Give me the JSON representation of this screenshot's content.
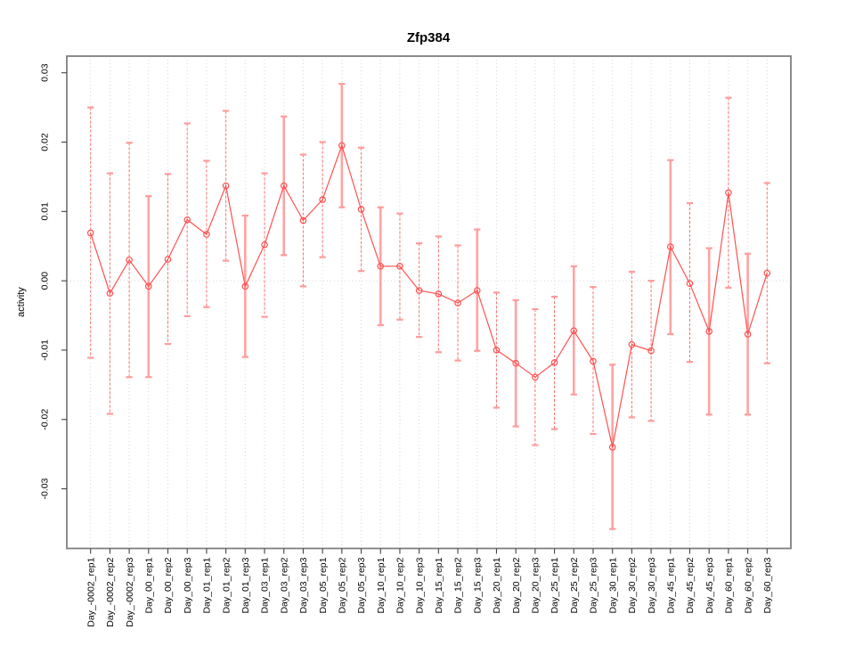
{
  "chart_data": {
    "type": "line",
    "title": "Zfp384",
    "xlabel": "",
    "ylabel": "activity",
    "legend": "none",
    "grid": "dotted vertical gridline at every category; dotted horizontal line at 0.00",
    "marker": "open-circle",
    "error_bars": true,
    "ylim": [
      -0.0386,
      0.0324
    ],
    "yticks": [
      -0.03,
      -0.02,
      -0.01,
      0.0,
      0.01,
      0.02,
      0.03
    ],
    "ytick_labels": [
      "-0.03",
      "-0.02",
      "-0.01",
      "0.00",
      "0.01",
      "0.02",
      "0.03"
    ],
    "categories": [
      "Day_-0002_rep1",
      "Day_-0002_rep2",
      "Day_-0002_rep3",
      "Day_00_rep1",
      "Day_00_rep2",
      "Day_00_rep3",
      "Day_01_rep1",
      "Day_01_rep2",
      "Day_01_rep3",
      "Day_03_rep1",
      "Day_03_rep2",
      "Day_03_rep3",
      "Day_05_rep1",
      "Day_05_rep2",
      "Day_05_rep3",
      "Day_10_rep1",
      "Day_10_rep2",
      "Day_10_rep3",
      "Day_15_rep1",
      "Day_15_rep2",
      "Day_15_rep3",
      "Day_20_rep1",
      "Day_20_rep2",
      "Day_20_rep3",
      "Day_25_rep1",
      "Day_25_rep2",
      "Day_25_rep3",
      "Day_30_rep1",
      "Day_30_rep2",
      "Day_30_rep3",
      "Day_45_rep1",
      "Day_45_rep2",
      "Day_45_rep3",
      "Day_60_rep1",
      "Day_60_rep2",
      "Day_60_rep3"
    ],
    "series": [
      {
        "name": "activity",
        "values": [
          0.0069,
          -0.0018,
          0.003,
          -0.0008,
          0.0031,
          0.0088,
          0.0067,
          0.0137,
          -0.0008,
          0.0052,
          0.0137,
          0.0087,
          0.0117,
          0.0195,
          0.0103,
          0.0021,
          0.0021,
          -0.0014,
          -0.0019,
          -0.0032,
          -0.0014,
          -0.01,
          -0.0119,
          -0.0139,
          -0.0118,
          -0.0072,
          -0.0116,
          -0.024,
          -0.0092,
          -0.0101,
          0.0049,
          -0.0004,
          -0.0073,
          0.0127,
          -0.0077,
          0.0011
        ],
        "err_lo": [
          -0.0111,
          -0.0192,
          -0.0139,
          -0.0139,
          -0.0091,
          -0.0051,
          -0.0038,
          0.0029,
          -0.011,
          -0.0052,
          0.0037,
          -0.0008,
          0.0034,
          0.0106,
          0.0014,
          -0.0064,
          -0.0056,
          -0.0081,
          -0.0103,
          -0.0115,
          -0.0101,
          -0.0183,
          -0.021,
          -0.0237,
          -0.0214,
          -0.0164,
          -0.0221,
          -0.0358,
          -0.0197,
          -0.0202,
          -0.0077,
          -0.0117,
          -0.0193,
          -0.001,
          -0.0193,
          -0.0119
        ],
        "err_hi": [
          0.025,
          0.0155,
          0.0199,
          0.0122,
          0.0154,
          0.0227,
          0.0173,
          0.0245,
          0.0094,
          0.0155,
          0.0237,
          0.0182,
          0.02,
          0.0284,
          0.0192,
          0.0106,
          0.0097,
          0.0054,
          0.0064,
          0.0051,
          0.0074,
          -0.0017,
          -0.0028,
          -0.0041,
          -0.0023,
          0.0021,
          -0.0009,
          -0.0121,
          0.0013,
          0.0,
          0.0174,
          0.0112,
          0.0047,
          0.0264,
          0.0039,
          0.0141
        ]
      }
    ],
    "solid_bar_indices": [
      3,
      8,
      10,
      13,
      15,
      20,
      22,
      25,
      27,
      30,
      32,
      34
    ],
    "colors": {
      "line": "#ff5050",
      "marker": "#ff5050",
      "error_bar_dashed": "#ff7070",
      "error_bar_solid": "#ffa3a3",
      "error_cap": "#ff9b9b",
      "grid": "#d6d6d6",
      "box": "#7f7f7f",
      "tick": "#444444",
      "text": "#000000"
    }
  }
}
